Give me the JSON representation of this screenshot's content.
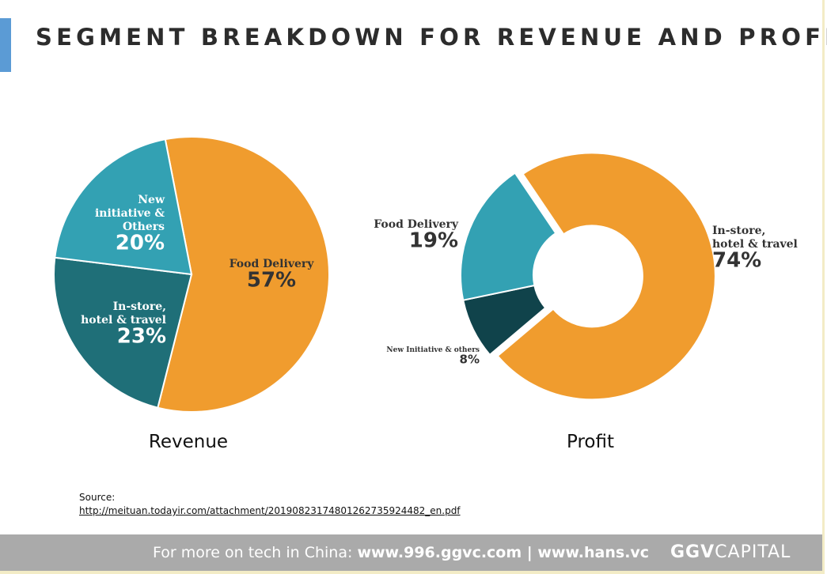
{
  "title": "SEGMENT BREAKDOWN FOR REVENUE AND PROFIT",
  "chart_data": [
    {
      "type": "pie",
      "title": "Revenue",
      "slices": [
        {
          "label": "Food Delivery",
          "value": 57,
          "display": "57%",
          "color": "#f09c2e"
        },
        {
          "label": "In-store,\nhotel & travel",
          "value": 23,
          "display": "23%",
          "color": "#1f6f78"
        },
        {
          "label": "New\ninitiative &\nOthers",
          "value": 20,
          "display": "20%",
          "color": "#33a1b3"
        }
      ]
    },
    {
      "type": "pie",
      "subtype": "donut",
      "title": "Profit",
      "slices": [
        {
          "label": "In-store,\nhotel & travel",
          "value": 74,
          "display": "74%",
          "color": "#f09c2e"
        },
        {
          "label": "New Initiative & others",
          "value": 8,
          "display": "8%",
          "color": "#10434b"
        },
        {
          "label": "Food Delivery",
          "value": 19,
          "display": "19%",
          "color": "#33a1b3"
        }
      ]
    }
  ],
  "source": {
    "label": "Source:",
    "url": "http://meituan.todayir.com/attachment/20190823174801262735924482_en.pdf"
  },
  "footer": {
    "prefix": "For more on tech in China: ",
    "link1": "www.996.ggvc.com",
    "separator": " | ",
    "link2": "www.hans.vc",
    "brand_bold": "GGV",
    "brand_light": "CAPITAL"
  }
}
